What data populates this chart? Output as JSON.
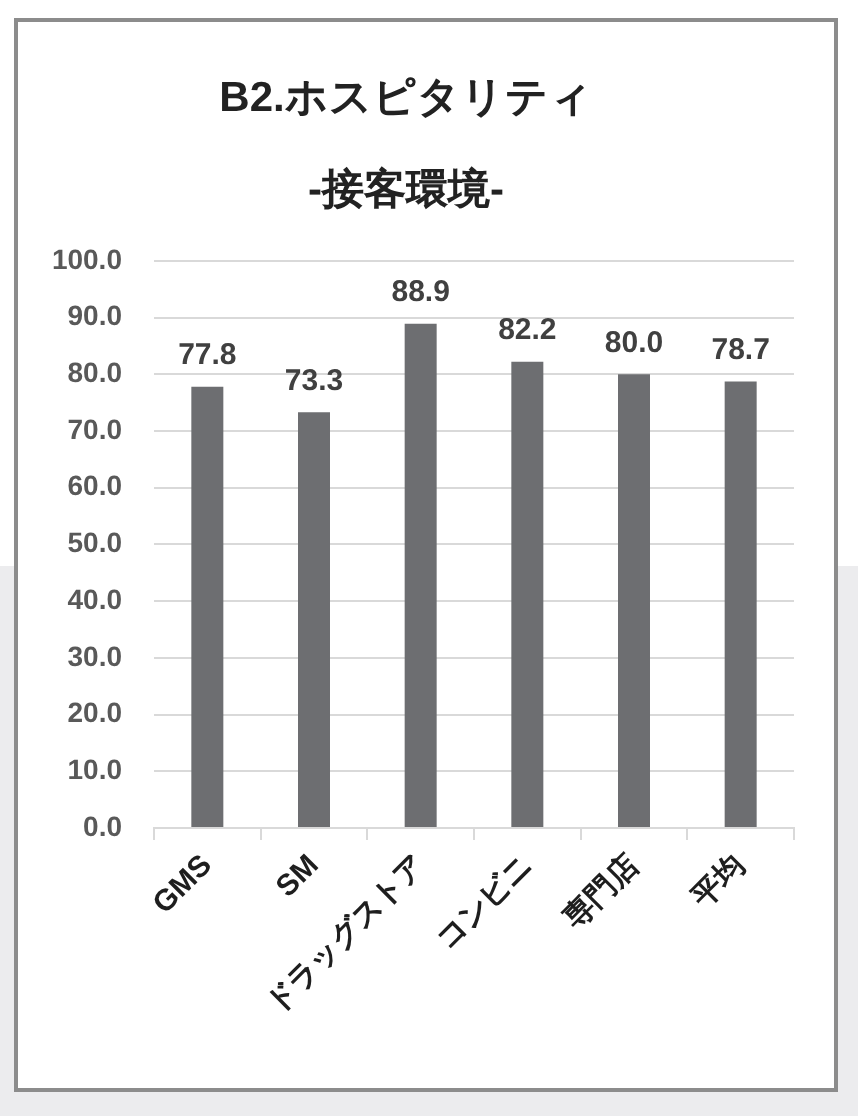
{
  "chart_data": {
    "type": "bar",
    "title": "B2.ホスピタリティ",
    "subtitle": "-接客環境-",
    "categories": [
      "GMS",
      "SM",
      "ドラッグストア",
      "コンビニ",
      "専門店",
      "平均"
    ],
    "values": [
      77.8,
      73.3,
      88.9,
      82.2,
      80.0,
      78.7
    ],
    "value_labels": [
      "77.8",
      "73.3",
      "88.9",
      "82.2",
      "80.0",
      "78.7"
    ],
    "color": "#6d6e71",
    "ylim": [
      0,
      100
    ],
    "yticks": [
      {
        "value": 0,
        "label": "0.0"
      },
      {
        "value": 10,
        "label": "10.0"
      },
      {
        "value": 20,
        "label": "20.0"
      },
      {
        "value": 30,
        "label": "30.0"
      },
      {
        "value": 40,
        "label": "40.0"
      },
      {
        "value": 50,
        "label": "50.0"
      },
      {
        "value": 60,
        "label": "60.0"
      },
      {
        "value": 70,
        "label": "70.0"
      },
      {
        "value": 80,
        "label": "80.0"
      },
      {
        "value": 90,
        "label": "90.0"
      },
      {
        "value": 100,
        "label": "100.0"
      }
    ],
    "grid": "y",
    "legend": false
  }
}
